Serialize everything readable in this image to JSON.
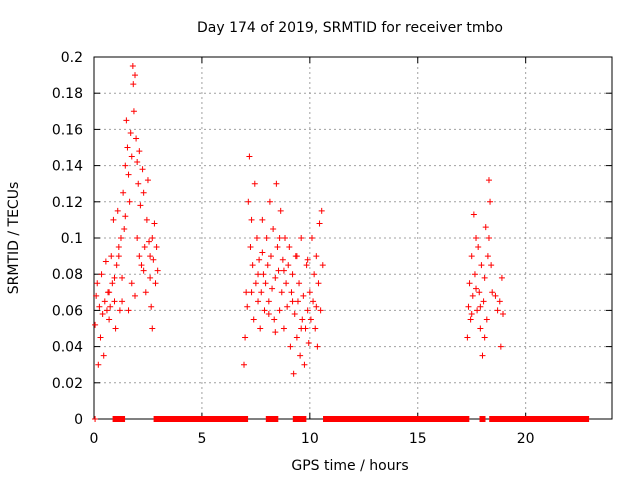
{
  "chart_data": {
    "type": "scatter",
    "title": "Day 174 of 2019, SRMTID for receiver tmbo",
    "xlabel": "GPS time / hours",
    "ylabel": "SRMTID / TECUs",
    "xlim": [
      0,
      24
    ],
    "ylim": [
      0,
      0.2
    ],
    "x_ticks": [
      0,
      5,
      10,
      15,
      20
    ],
    "y_ticks": [
      0,
      0.02,
      0.04,
      0.06,
      0.08,
      0.1,
      0.12,
      0.14,
      0.16,
      0.18,
      0.2
    ],
    "x_tick_labels": [
      "0",
      "5",
      "10",
      "15",
      "20"
    ],
    "y_tick_labels": [
      "0",
      "0.02",
      "0.04",
      "0.06",
      "0.08",
      "0.1",
      "0.12",
      "0.14",
      "0.16",
      "0.18",
      "0.2"
    ],
    "grid": true,
    "marker": "+",
    "series": [
      {
        "name": "SRMTID",
        "color": "#ff0000",
        "points": [
          [
            0.05,
            0.052
          ],
          [
            0.1,
            0.068
          ],
          [
            0.15,
            0.075
          ],
          [
            0.2,
            0.03
          ],
          [
            0.25,
            0.062
          ],
          [
            0.3,
            0.045
          ],
          [
            0.35,
            0.08
          ],
          [
            0.4,
            0.058
          ],
          [
            0.45,
            0.035
          ],
          [
            0.5,
            0.065
          ],
          [
            0.55,
            0.087
          ],
          [
            0.6,
            0.06
          ],
          [
            0.65,
            0.07
          ],
          [
            0.7,
            0.055
          ],
          [
            0.75,
            0.062
          ],
          [
            0.8,
            0.09
          ],
          [
            0.85,
            0.075
          ],
          [
            0.9,
            0.11
          ],
          [
            0.95,
            0.065
          ],
          [
            1.0,
            0.05
          ],
          [
            1.05,
            0.085
          ],
          [
            1.1,
            0.115
          ],
          [
            1.15,
            0.095
          ],
          [
            1.2,
            0.06
          ],
          [
            1.25,
            0.1
          ],
          [
            1.3,
            0.078
          ],
          [
            1.35,
            0.125
          ],
          [
            1.4,
            0.105
          ],
          [
            1.45,
            0.14
          ],
          [
            1.5,
            0.165
          ],
          [
            1.55,
            0.15
          ],
          [
            1.6,
            0.135
          ],
          [
            1.65,
            0.12
          ],
          [
            1.7,
            0.158
          ],
          [
            1.75,
            0.145
          ],
          [
            1.8,
            0.195
          ],
          [
            1.82,
            0.185
          ],
          [
            1.85,
            0.17
          ],
          [
            1.9,
            0.19
          ],
          [
            1.95,
            0.155
          ],
          [
            2.0,
            0.142
          ],
          [
            2.05,
            0.13
          ],
          [
            2.1,
            0.148
          ],
          [
            2.15,
            0.118
          ],
          [
            2.2,
            0.085
          ],
          [
            2.25,
            0.138
          ],
          [
            2.3,
            0.125
          ],
          [
            2.35,
            0.095
          ],
          [
            2.4,
            0.07
          ],
          [
            2.45,
            0.11
          ],
          [
            2.5,
            0.132
          ],
          [
            2.55,
            0.098
          ],
          [
            2.6,
            0.078
          ],
          [
            2.65,
            0.062
          ],
          [
            2.7,
            0.05
          ],
          [
            2.75,
            0.088
          ],
          [
            2.8,
            0.108
          ],
          [
            2.85,
            0.075
          ],
          [
            2.9,
            0.095
          ],
          [
            2.95,
            0.082
          ],
          [
            1.6,
            0.06
          ],
          [
            1.75,
            0.075
          ],
          [
            1.9,
            0.068
          ],
          [
            2.1,
            0.09
          ],
          [
            2.3,
            0.082
          ],
          [
            1.3,
            0.065
          ],
          [
            1.15,
            0.09
          ],
          [
            0.95,
            0.078
          ],
          [
            2.6,
            0.09
          ],
          [
            2.7,
            0.1
          ],
          [
            0.7,
            0.07
          ],
          [
            1.45,
            0.112
          ],
          [
            2.0,
            0.1
          ],
          [
            6.95,
            0.03
          ],
          [
            7.0,
            0.045
          ],
          [
            7.05,
            0.07
          ],
          [
            7.1,
            0.062
          ],
          [
            7.15,
            0.12
          ],
          [
            7.2,
            0.145
          ],
          [
            7.25,
            0.095
          ],
          [
            7.3,
            0.11
          ],
          [
            7.35,
            0.085
          ],
          [
            7.4,
            0.055
          ],
          [
            7.45,
            0.13
          ],
          [
            7.5,
            0.075
          ],
          [
            7.55,
            0.1
          ],
          [
            7.6,
            0.065
          ],
          [
            7.65,
            0.088
          ],
          [
            7.7,
            0.05
          ],
          [
            7.75,
            0.07
          ],
          [
            7.8,
            0.092
          ],
          [
            7.85,
            0.08
          ],
          [
            7.9,
            0.06
          ],
          [
            7.95,
            0.075
          ],
          [
            8.0,
            0.1
          ],
          [
            8.05,
            0.085
          ],
          [
            8.1,
            0.065
          ],
          [
            8.15,
            0.12
          ],
          [
            8.2,
            0.09
          ],
          [
            8.25,
            0.072
          ],
          [
            8.3,
            0.105
          ],
          [
            8.35,
            0.055
          ],
          [
            8.4,
            0.078
          ],
          [
            8.45,
            0.13
          ],
          [
            8.5,
            0.095
          ],
          [
            8.55,
            0.082
          ],
          [
            8.6,
            0.06
          ],
          [
            8.65,
            0.115
          ],
          [
            8.7,
            0.07
          ],
          [
            8.75,
            0.088
          ],
          [
            8.8,
            0.05
          ],
          [
            8.85,
            0.1
          ],
          [
            8.9,
            0.075
          ],
          [
            8.95,
            0.062
          ],
          [
            9.0,
            0.085
          ],
          [
            9.05,
            0.095
          ],
          [
            9.1,
            0.04
          ],
          [
            9.15,
            0.07
          ],
          [
            9.2,
            0.08
          ],
          [
            9.25,
            0.025
          ],
          [
            9.3,
            0.058
          ],
          [
            9.35,
            0.09
          ],
          [
            9.4,
            0.045
          ],
          [
            9.45,
            0.065
          ],
          [
            9.5,
            0.075
          ],
          [
            9.55,
            0.035
          ],
          [
            9.6,
            0.1
          ],
          [
            9.65,
            0.055
          ],
          [
            9.7,
            0.068
          ],
          [
            9.75,
            0.03
          ],
          [
            9.8,
            0.05
          ],
          [
            9.85,
            0.085
          ],
          [
            9.9,
            0.06
          ],
          [
            9.95,
            0.042
          ],
          [
            10.0,
            0.07
          ],
          [
            10.05,
            0.055
          ],
          [
            10.1,
            0.1
          ],
          [
            10.15,
            0.065
          ],
          [
            10.2,
            0.08
          ],
          [
            10.25,
            0.05
          ],
          [
            10.3,
            0.09
          ],
          [
            10.35,
            0.04
          ],
          [
            10.4,
            0.075
          ],
          [
            10.45,
            0.108
          ],
          [
            10.5,
            0.06
          ],
          [
            10.55,
            0.115
          ],
          [
            10.6,
            0.085
          ],
          [
            7.3,
            0.07
          ],
          [
            7.6,
            0.08
          ],
          [
            8.1,
            0.058
          ],
          [
            8.4,
            0.048
          ],
          [
            8.8,
            0.082
          ],
          [
            9.2,
            0.065
          ],
          [
            9.6,
            0.05
          ],
          [
            9.9,
            0.088
          ],
          [
            10.3,
            0.062
          ],
          [
            7.8,
            0.11
          ],
          [
            8.6,
            0.1
          ],
          [
            9.4,
            0.09
          ],
          [
            17.3,
            0.045
          ],
          [
            17.35,
            0.062
          ],
          [
            17.4,
            0.075
          ],
          [
            17.45,
            0.055
          ],
          [
            17.5,
            0.09
          ],
          [
            17.55,
            0.068
          ],
          [
            17.6,
            0.113
          ],
          [
            17.65,
            0.08
          ],
          [
            17.7,
            0.1
          ],
          [
            17.75,
            0.06
          ],
          [
            17.8,
            0.095
          ],
          [
            17.85,
            0.07
          ],
          [
            17.9,
            0.05
          ],
          [
            17.95,
            0.085
          ],
          [
            18.0,
            0.035
          ],
          [
            18.05,
            0.065
          ],
          [
            18.1,
            0.078
          ],
          [
            18.15,
            0.106
          ],
          [
            18.2,
            0.055
          ],
          [
            18.25,
            0.09
          ],
          [
            18.3,
            0.132
          ],
          [
            18.35,
            0.12
          ],
          [
            18.4,
            0.085
          ],
          [
            18.45,
            0.07
          ],
          [
            17.5,
            0.058
          ],
          [
            17.7,
            0.072
          ],
          [
            17.9,
            0.062
          ],
          [
            18.1,
            0.045
          ],
          [
            18.3,
            0.1
          ],
          [
            18.6,
            0.068
          ],
          [
            18.7,
            0.06
          ],
          [
            18.8,
            0.065
          ],
          [
            18.85,
            0.04
          ],
          [
            18.9,
            0.078
          ],
          [
            18.95,
            0.058
          ],
          [
            0.05,
            0.0
          ],
          [
            1.0,
            0.0
          ],
          [
            1.15,
            0.0
          ],
          [
            1.3,
            0.0
          ],
          [
            2.9,
            0.0
          ],
          [
            7.0,
            0.0
          ],
          [
            8.1,
            0.0
          ],
          [
            8.25,
            0.0
          ],
          [
            8.4,
            0.0
          ],
          [
            9.35,
            0.0
          ],
          [
            9.55,
            0.0
          ],
          [
            9.7,
            0.0
          ],
          [
            10.75,
            0.0
          ],
          [
            13.45,
            0.0
          ],
          [
            17.25,
            0.0
          ],
          [
            18.0,
            0.0
          ],
          [
            18.45,
            0.0
          ],
          [
            18.55,
            0.0
          ],
          [
            18.85,
            0.0
          ],
          [
            22.8,
            0.0
          ]
        ]
      }
    ],
    "zero_bands": [
      [
        1.0,
        1.3
      ],
      [
        2.9,
        7.0
      ],
      [
        8.1,
        8.4
      ],
      [
        9.35,
        9.7
      ],
      [
        10.75,
        13.45
      ],
      [
        13.55,
        17.25
      ],
      [
        18.0,
        18.0
      ],
      [
        18.45,
        18.85
      ],
      [
        18.9,
        22.8
      ]
    ]
  }
}
